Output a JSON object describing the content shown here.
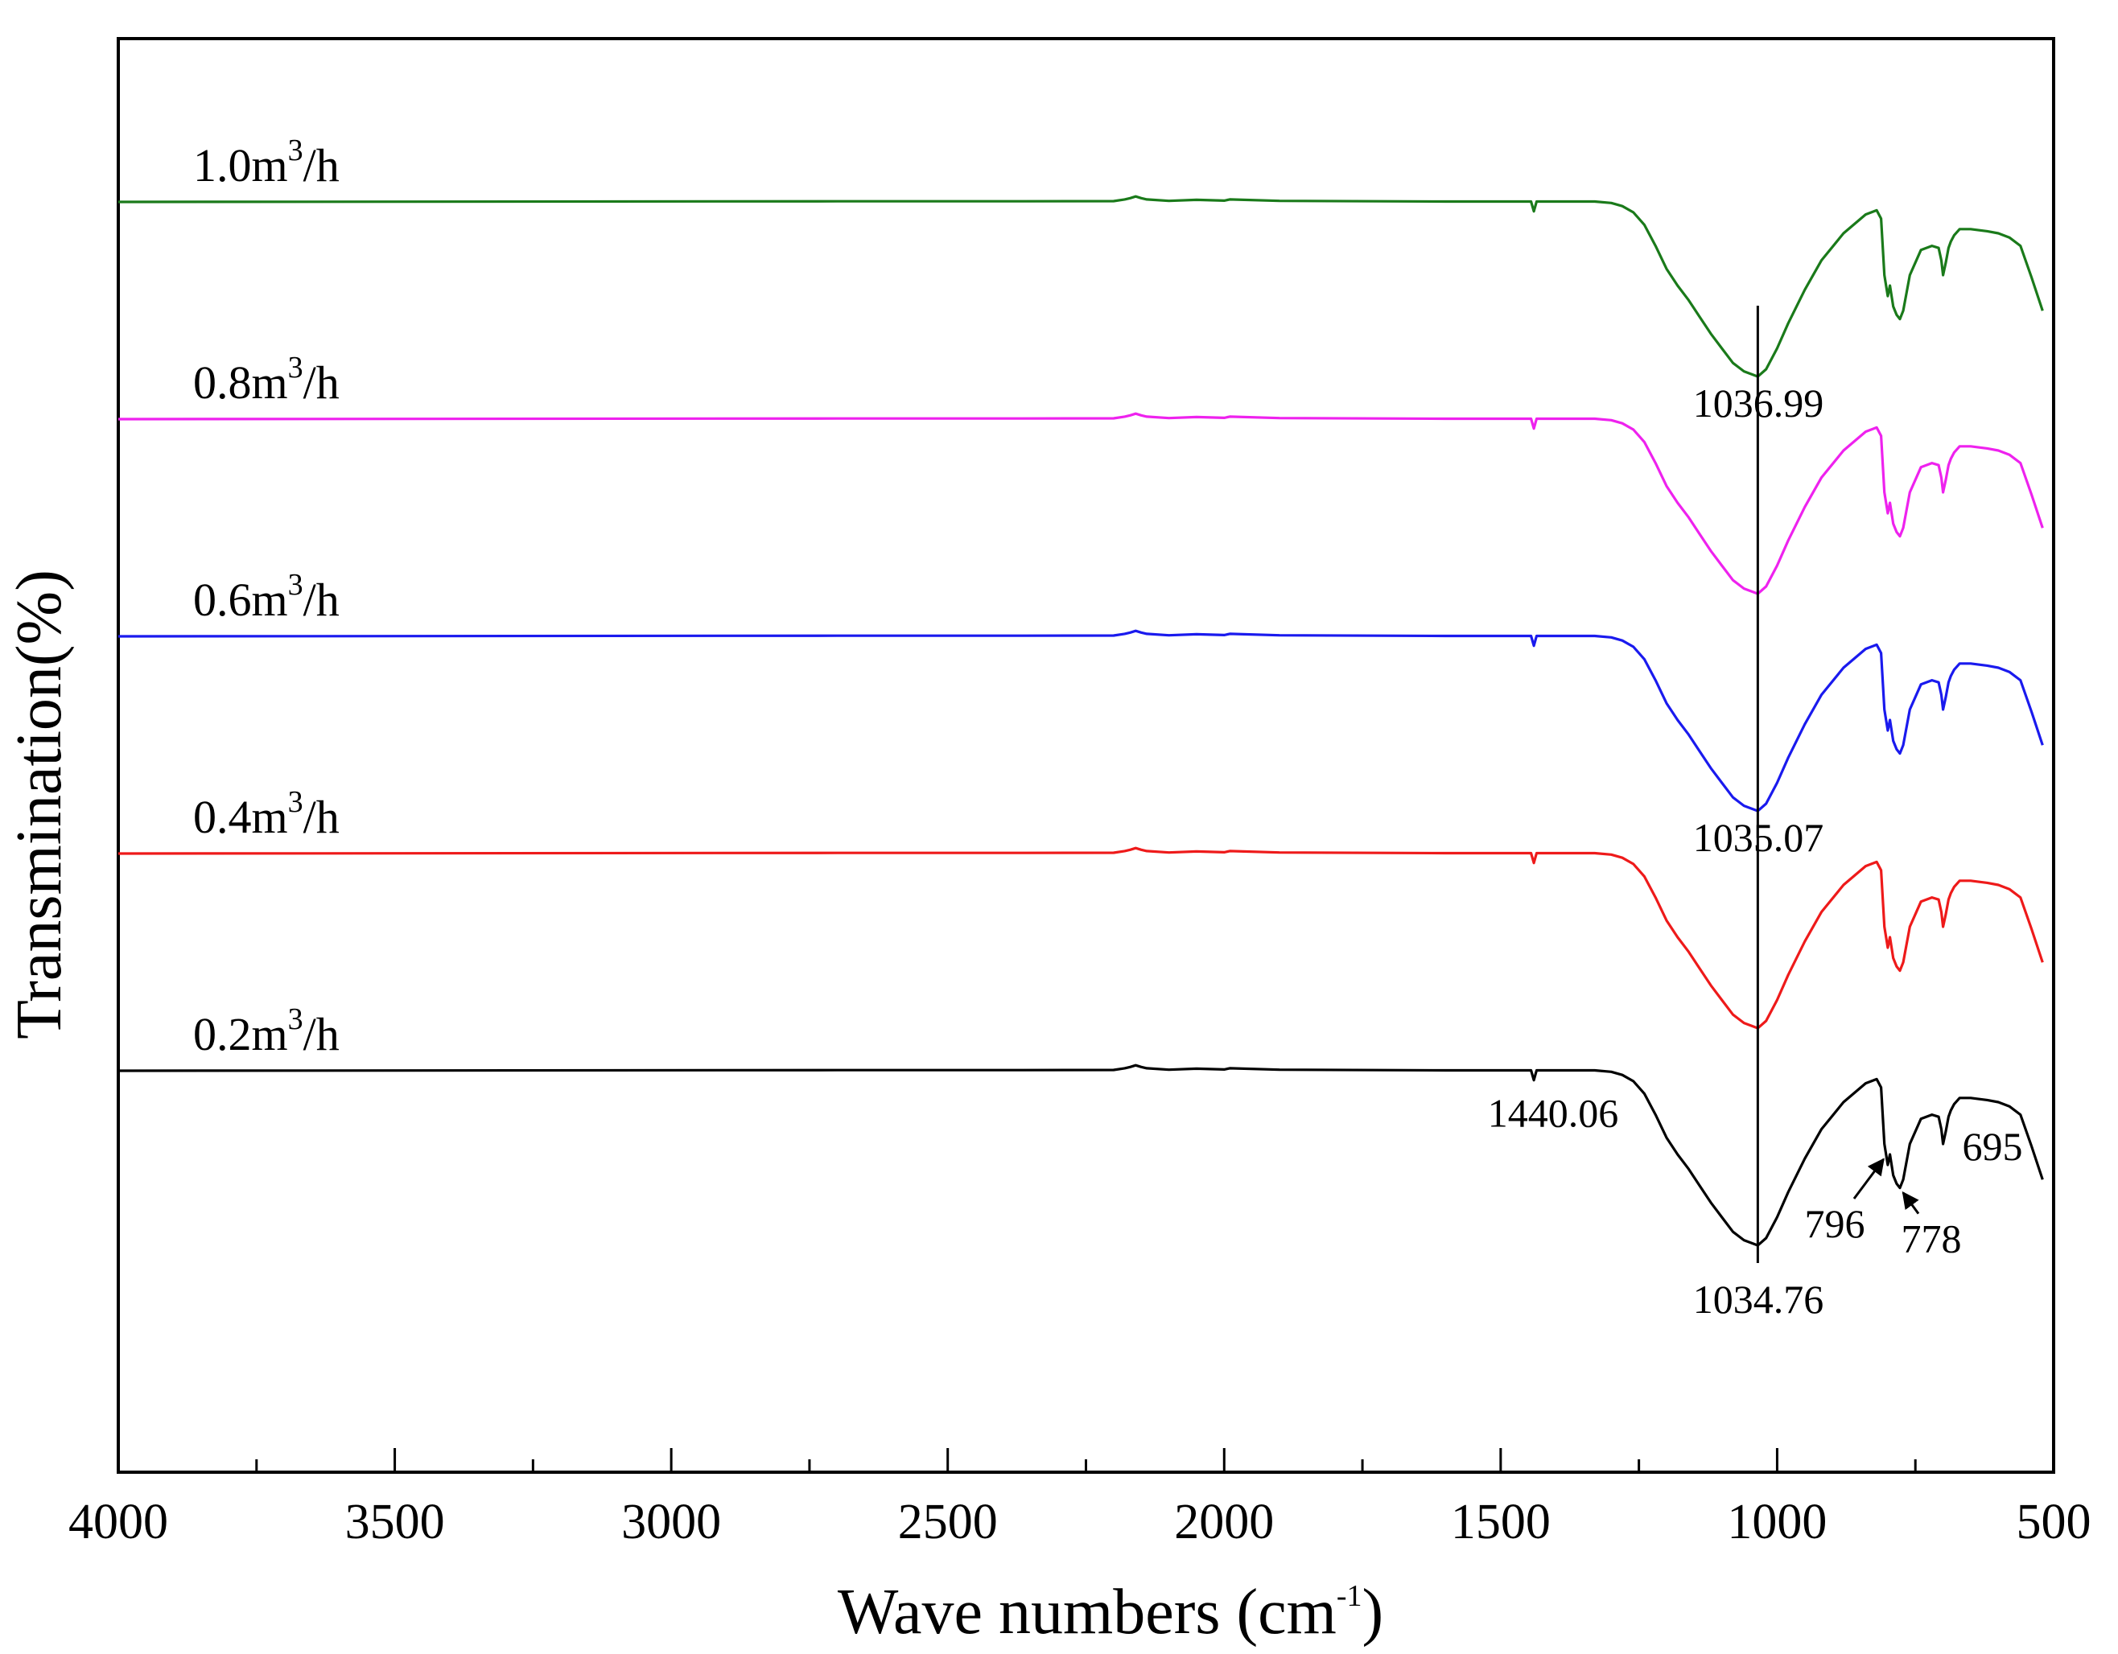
{
  "chart_data": {
    "type": "line",
    "title": "",
    "xlabel": "Wave numbers (cm",
    "xlabel_sup": "-1",
    "xlabel_end": ")",
    "ylabel": "Transmination(%)",
    "xlim": [
      4000,
      500
    ],
    "x_reversed": true,
    "yticks_labeled": false,
    "grid": false,
    "xticks": [
      4000,
      3500,
      3000,
      2500,
      2000,
      1500,
      1000,
      500
    ],
    "xtick_labels": [
      "4000",
      "3500",
      "3000",
      "2500",
      "2000",
      "1500",
      "1000",
      "500"
    ],
    "minor_xticks": [
      3750,
      3250,
      2750,
      2250,
      1750,
      1250,
      750
    ],
    "y_units": "arbitrary transmission, stacked",
    "vertical_reference_line": {
      "x": 1035,
      "color": "#000000"
    },
    "series": [
      {
        "name": "1.0m3/h",
        "label_main": "1.0m",
        "label_sup": "3",
        "label_end": "/h",
        "color": "#1a7a1a",
        "offset": 4
      },
      {
        "name": "0.8m3/h",
        "label_main": "0.8m",
        "label_sup": "3",
        "label_end": "/h",
        "color": "#ee22ee",
        "offset": 3
      },
      {
        "name": "0.6m3/h",
        "label_main": "0.6m",
        "label_sup": "3",
        "label_end": "/h",
        "color": "#1a1aee",
        "offset": 2
      },
      {
        "name": "0.4m3/h",
        "label_main": "0.4m",
        "label_sup": "3",
        "label_end": "/h",
        "color": "#ee1a1a",
        "offset": 1
      },
      {
        "name": "0.2m3/h",
        "label_main": "0.2m",
        "label_sup": "3",
        "label_end": "/h",
        "color": "#000000",
        "offset": 0
      }
    ],
    "spectrum_profile": {
      "x": [
        4000,
        2700,
        2400,
        2200,
        2180,
        2170,
        2160,
        2150,
        2140,
        2100,
        2050,
        2000,
        1990,
        1900,
        1600,
        1445,
        1440,
        1435,
        1330,
        1300,
        1280,
        1260,
        1240,
        1220,
        1200,
        1180,
        1160,
        1140,
        1120,
        1100,
        1080,
        1060,
        1040,
        1035,
        1020,
        1000,
        980,
        950,
        920,
        880,
        840,
        820,
        812,
        806,
        800,
        796,
        790,
        784,
        778,
        772,
        760,
        740,
        720,
        708,
        703,
        700,
        695,
        690,
        686,
        680,
        670,
        650,
        620,
        600,
        580,
        560,
        540,
        520
      ],
      "y": [
        0,
        0.3,
        0.3,
        0.4,
        1.2,
        1.8,
        2.6,
        1.8,
        1.2,
        0.5,
        1.0,
        0.6,
        1.2,
        0.5,
        0.2,
        0.2,
        -4.5,
        0.2,
        0.2,
        -0.5,
        -2.0,
        -5.0,
        -11,
        -21,
        -32,
        -40,
        -47,
        -55,
        -63,
        -70,
        -77,
        -81,
        -83,
        -83.5,
        -80,
        -70,
        -58,
        -42,
        -28,
        -15,
        -6,
        -4,
        -8,
        -35,
        -45,
        -40,
        -50,
        -54,
        -56,
        -52,
        -35,
        -23,
        -21,
        -22,
        -28,
        -35,
        -29,
        -22,
        -19,
        -16,
        -13,
        -13,
        -14,
        -15,
        -17,
        -21,
        -36,
        -52
      ]
    },
    "annotations": [
      {
        "text": "1036.99",
        "series": "1.0m3/h"
      },
      {
        "text": "1035.07",
        "series": "0.6m3/h"
      },
      {
        "text": "1440.06",
        "series": "0.2m3/h"
      },
      {
        "text": "1034.76",
        "series": "0.2m3/h"
      },
      {
        "text": "796",
        "series": "0.2m3/h",
        "arrow_to": 796
      },
      {
        "text": "778",
        "series": "0.2m3/h",
        "arrow_to": 778
      },
      {
        "text": "695",
        "series": "0.2m3/h"
      }
    ]
  }
}
